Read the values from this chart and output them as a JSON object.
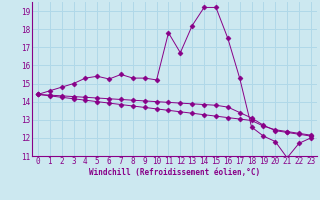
{
  "xlabel": "Windchill (Refroidissement éolien,°C)",
  "background_color": "#cce8f0",
  "line_color": "#880088",
  "grid_color": "#b0d8e8",
  "x": [
    0,
    1,
    2,
    3,
    4,
    5,
    6,
    7,
    8,
    9,
    10,
    11,
    12,
    13,
    14,
    15,
    16,
    17,
    18,
    19,
    20,
    21,
    22,
    23
  ],
  "y_main": [
    14.4,
    14.6,
    14.8,
    15.0,
    15.3,
    15.4,
    15.25,
    15.5,
    15.3,
    15.3,
    15.2,
    17.8,
    16.7,
    18.2,
    19.2,
    19.2,
    17.5,
    15.3,
    12.6,
    12.1,
    11.8,
    10.9,
    11.7,
    12.0
  ],
  "y_line2": [
    14.4,
    14.32,
    14.24,
    14.16,
    14.08,
    14.0,
    13.92,
    13.84,
    13.76,
    13.68,
    13.6,
    13.52,
    13.44,
    13.36,
    13.28,
    13.2,
    13.12,
    13.04,
    12.96,
    12.65,
    12.45,
    12.35,
    12.25,
    12.15
  ],
  "y_line3": [
    14.4,
    14.36,
    14.32,
    14.28,
    14.24,
    14.2,
    14.16,
    14.12,
    14.08,
    14.04,
    14.0,
    13.96,
    13.92,
    13.88,
    13.84,
    13.8,
    13.7,
    13.4,
    13.1,
    12.7,
    12.4,
    12.3,
    12.2,
    12.1
  ],
  "ylim": [
    11,
    19.5
  ],
  "yticks": [
    11,
    12,
    13,
    14,
    15,
    16,
    17,
    18,
    19
  ],
  "xlim": [
    -0.5,
    23.5
  ],
  "xticks": [
    0,
    1,
    2,
    3,
    4,
    5,
    6,
    7,
    8,
    9,
    10,
    11,
    12,
    13,
    14,
    15,
    16,
    17,
    18,
    19,
    20,
    21,
    22,
    23
  ]
}
